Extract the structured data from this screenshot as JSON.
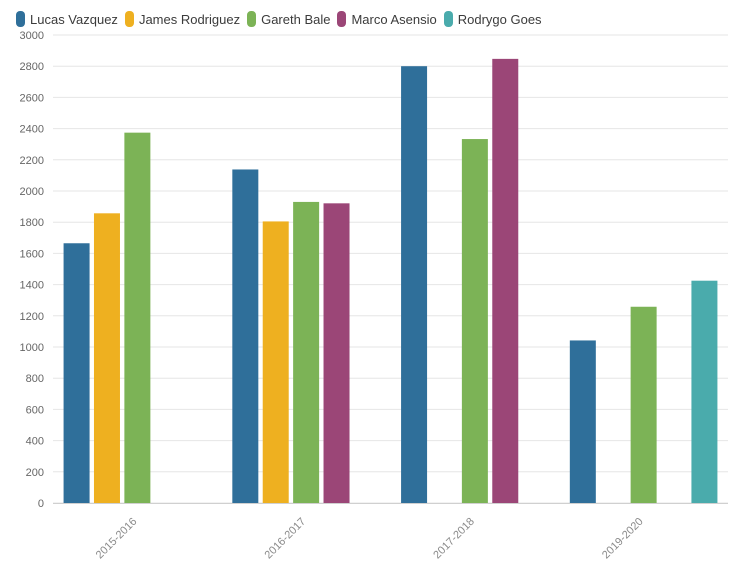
{
  "chart_data": {
    "type": "bar",
    "categories": [
      "2015-2016",
      "2016-2017",
      "2017-2018",
      "2019-2020"
    ],
    "series": [
      {
        "name": "Lucas Vazquez",
        "color": "#2f6f9a",
        "values": [
          1665,
          2138,
          2800,
          1042
        ]
      },
      {
        "name": "James Rodriguez",
        "color": "#eeb020",
        "values": [
          1857,
          1805,
          null,
          null
        ]
      },
      {
        "name": "Gareth Bale",
        "color": "#7cb356",
        "values": [
          2374,
          1930,
          2333,
          1258
        ]
      },
      {
        "name": "Marco Asensio",
        "color": "#9b4677",
        "values": [
          null,
          1921,
          2847,
          null
        ]
      },
      {
        "name": "Rodrygo Goes",
        "color": "#4aabac",
        "values": [
          null,
          null,
          null,
          1425
        ]
      }
    ],
    "ylim": [
      0,
      3000
    ],
    "yticks": [
      0,
      200,
      400,
      600,
      800,
      1000,
      1200,
      1400,
      1600,
      1800,
      2000,
      2200,
      2400,
      2600,
      2800,
      3000
    ],
    "grid": true,
    "legend_position": "top-left",
    "title": "",
    "xlabel": "",
    "ylabel": ""
  }
}
